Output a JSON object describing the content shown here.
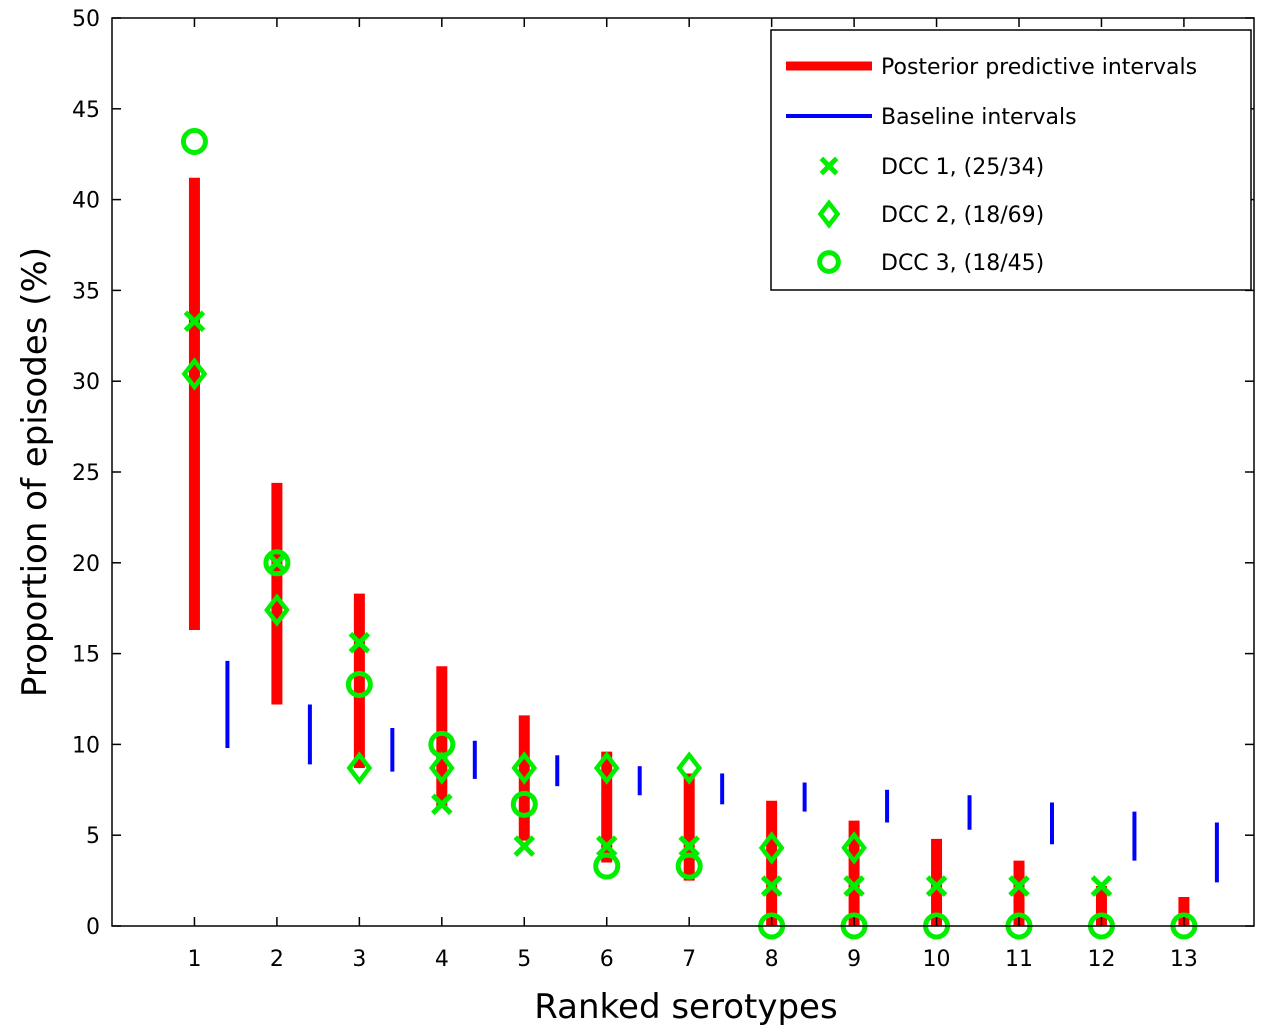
{
  "chart_data": {
    "type": "scatter",
    "xlabel": "Ranked serotypes",
    "ylabel": "Proportion of episodes (%)",
    "xlim": [
      0,
      13.85
    ],
    "ylim": [
      0,
      50
    ],
    "x_ticks": [
      1,
      2,
      3,
      4,
      5,
      6,
      7,
      8,
      9,
      10,
      11,
      12,
      13
    ],
    "y_ticks": [
      0,
      5,
      10,
      15,
      20,
      25,
      30,
      35,
      40,
      45,
      50
    ],
    "legend_position": "top-right",
    "grid": false,
    "posterior_predictive_intervals": {
      "name": "Posterior predictive intervals",
      "color": "#ff0000",
      "x": [
        1,
        2,
        3,
        4,
        5,
        6,
        7,
        8,
        9,
        10,
        11,
        12,
        13
      ],
      "low": [
        16.3,
        12.2,
        8.7,
        6.5,
        4.7,
        3.5,
        2.5,
        0,
        0,
        0,
        0,
        0,
        0
      ],
      "high": [
        41.2,
        24.4,
        18.3,
        14.3,
        11.6,
        9.6,
        8.4,
        6.9,
        5.8,
        4.8,
        3.6,
        2.2,
        1.6
      ]
    },
    "baseline_intervals": {
      "name": "Baseline intervals",
      "color": "#0000ff",
      "x": [
        1.4,
        2.4,
        3.4,
        4.4,
        5.4,
        6.4,
        7.4,
        8.4,
        9.4,
        10.4,
        11.4,
        12.4,
        13.4
      ],
      "low": [
        9.8,
        8.9,
        8.5,
        8.1,
        7.7,
        7.2,
        6.7,
        6.3,
        5.7,
        5.3,
        4.5,
        3.6,
        2.4
      ],
      "high": [
        14.6,
        12.2,
        10.9,
        10.2,
        9.4,
        8.8,
        8.4,
        7.9,
        7.5,
        7.2,
        6.8,
        6.3,
        5.7
      ]
    },
    "series": [
      {
        "name": "DCC 1, (25/34)",
        "marker": "x",
        "color": "#00ee00",
        "x": [
          1,
          2,
          3,
          4,
          5,
          6,
          7,
          8,
          9,
          10,
          11,
          12
        ],
        "y": [
          33.3,
          20.0,
          15.6,
          6.7,
          4.4,
          4.4,
          4.4,
          2.2,
          2.2,
          2.2,
          2.2,
          2.2
        ]
      },
      {
        "name": "DCC 2, (18/69)",
        "marker": "diamond",
        "color": "#00ee00",
        "x": [
          1,
          2,
          3,
          4,
          5,
          6,
          7,
          8,
          9
        ],
        "y": [
          30.4,
          17.4,
          8.7,
          8.7,
          8.7,
          8.7,
          8.7,
          4.3,
          4.3
        ]
      },
      {
        "name": "DCC 3, (18/45)",
        "marker": "circle",
        "color": "#00ee00",
        "x": [
          1,
          2,
          3,
          4,
          5,
          6,
          7,
          8,
          9,
          10,
          11,
          12,
          13
        ],
        "y": [
          43.2,
          20.0,
          13.3,
          10.0,
          6.7,
          3.3,
          3.3,
          0,
          0,
          0,
          0,
          0,
          0
        ]
      }
    ]
  }
}
